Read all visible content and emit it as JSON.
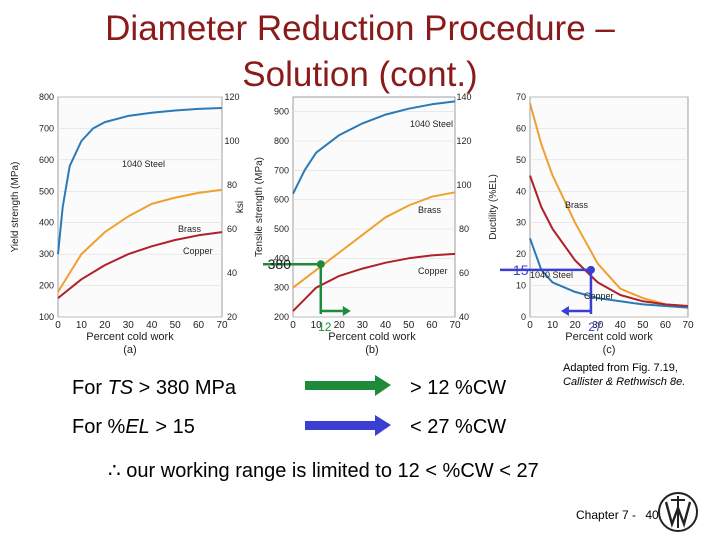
{
  "slide": {
    "title_line1": "Diameter Reduction Procedure –",
    "title_line2": "Solution (cont.)",
    "colors": {
      "title": "#8b1a1a",
      "steel": "#2a7ab8",
      "brass": "#f0a030",
      "copper": "#b0202a",
      "marker": "#1f8a3a",
      "marker_blue": "#3a3fd2"
    }
  },
  "statements": {
    "ts_prefix": "For ",
    "ts_symbol": "TS",
    "ts_condition": " > 380 MPa",
    "ts_result": "> 12 %CW",
    "el_prefix": "For %",
    "el_symbol": "EL",
    "el_condition": " > 15",
    "el_result": "< 27 %CW",
    "conclusion": "∴  our working range is limited to 12 < %CW < 27"
  },
  "citation": {
    "line1": "Adapted from Fig. 7.19,",
    "line2_names": "Callister & Rethwisch 8e."
  },
  "footer": {
    "chapter": "Chapter 7 -",
    "page": "40"
  },
  "chart_data": [
    {
      "panel": "(a)",
      "type": "line",
      "xlabel": "Percent cold work",
      "ylabel_left": "Yield strength (MPa)",
      "ylabel_right": "ksi",
      "xlim": [
        0,
        70
      ],
      "ylim": [
        100,
        800
      ],
      "ylim_right": [
        20,
        120
      ],
      "xticks": [
        0,
        10,
        20,
        30,
        40,
        50,
        60,
        70
      ],
      "yticks": [
        100,
        200,
        300,
        400,
        500,
        600,
        700,
        800
      ],
      "yticks_right": [
        20,
        40,
        60,
        80,
        100,
        120
      ],
      "series": [
        {
          "name": "1040 Steel",
          "x": [
            0,
            2,
            5,
            10,
            15,
            20,
            30,
            40,
            50,
            60,
            70
          ],
          "y": [
            300,
            450,
            580,
            660,
            700,
            720,
            740,
            750,
            757,
            762,
            765
          ]
        },
        {
          "name": "Brass",
          "x": [
            0,
            10,
            20,
            30,
            40,
            50,
            60,
            70
          ],
          "y": [
            180,
            300,
            370,
            420,
            460,
            480,
            495,
            505
          ]
        },
        {
          "name": "Copper",
          "x": [
            0,
            10,
            20,
            30,
            40,
            50,
            60,
            70
          ],
          "y": [
            160,
            220,
            265,
            300,
            325,
            345,
            360,
            370
          ]
        }
      ]
    },
    {
      "panel": "(b)",
      "type": "line",
      "xlabel": "Percent cold work",
      "ylabel_left": "Tensile strength (MPa)",
      "ylabel_right": "ksi",
      "xlim": [
        0,
        70
      ],
      "ylim": [
        200,
        950
      ],
      "ylim_right": [
        40,
        140
      ],
      "xticks": [
        0,
        10,
        20,
        30,
        40,
        50,
        60,
        70
      ],
      "yticks": [
        200,
        300,
        400,
        500,
        600,
        700,
        800,
        900
      ],
      "yticks_right": [
        40,
        60,
        80,
        100,
        120,
        140
      ],
      "series": [
        {
          "name": "1040 Steel",
          "x": [
            0,
            5,
            10,
            20,
            30,
            40,
            50,
            60,
            70
          ],
          "y": [
            620,
            700,
            760,
            820,
            860,
            890,
            910,
            925,
            935
          ]
        },
        {
          "name": "Brass",
          "x": [
            0,
            10,
            20,
            30,
            40,
            50,
            60,
            70
          ],
          "y": [
            300,
            360,
            420,
            480,
            540,
            580,
            610,
            625
          ]
        },
        {
          "name": "Copper",
          "x": [
            0,
            10,
            20,
            30,
            40,
            50,
            60,
            70
          ],
          "y": [
            220,
            300,
            340,
            365,
            385,
            400,
            410,
            415
          ]
        }
      ],
      "annotation": {
        "y_label": "380",
        "x_label": "12",
        "x": 12,
        "y": 380
      }
    },
    {
      "panel": "(c)",
      "type": "line",
      "xlabel": "Percent cold work",
      "ylabel_left": "Ductility (%EL)",
      "xlim": [
        0,
        70
      ],
      "ylim": [
        0,
        70
      ],
      "xticks": [
        0,
        10,
        20,
        30,
        40,
        50,
        60,
        70
      ],
      "yticks": [
        0,
        10,
        20,
        30,
        40,
        50,
        60,
        70
      ],
      "series": [
        {
          "name": "Brass",
          "x": [
            0,
            5,
            10,
            20,
            30,
            40,
            50,
            60,
            70
          ],
          "y": [
            68,
            55,
            45,
            30,
            17,
            9,
            6,
            4,
            3
          ]
        },
        {
          "name": "1040 Steel",
          "x": [
            0,
            5,
            10,
            20,
            30,
            40,
            50,
            60,
            70
          ],
          "y": [
            25,
            15,
            11,
            8,
            6,
            5,
            4,
            3.5,
            3
          ]
        },
        {
          "name": "Copper",
          "x": [
            0,
            5,
            10,
            20,
            30,
            40,
            50,
            60,
            70
          ],
          "y": [
            45,
            35,
            28,
            18,
            11,
            7,
            5,
            4,
            3.5
          ]
        }
      ],
      "annotation": {
        "y_label": "15",
        "x_label": "27",
        "x": 27,
        "y": 15
      }
    }
  ]
}
